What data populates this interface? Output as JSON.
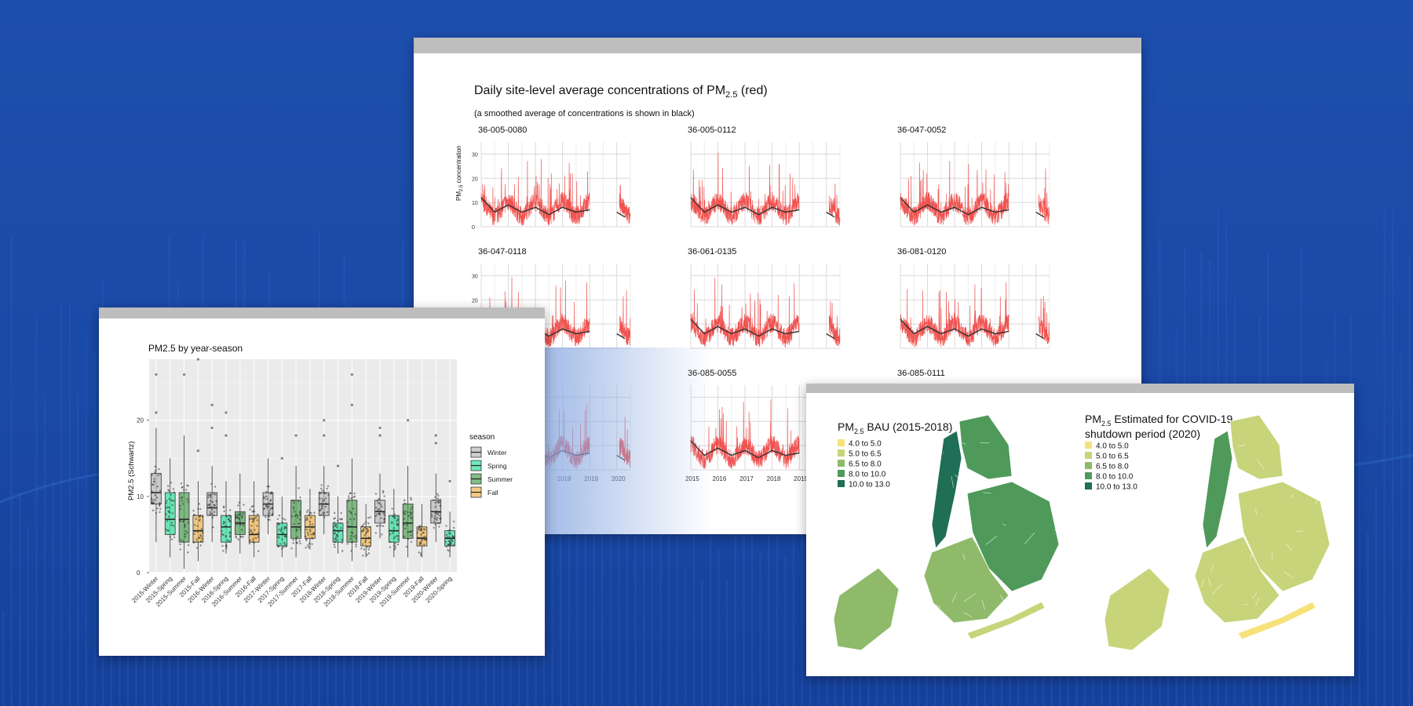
{
  "colors": {
    "background": "#1d4fae",
    "card": "#ffffff",
    "card_bar": "#bdbdbd",
    "daily_series": "#ef5350",
    "smoothed_series": "#333333",
    "winter": "#bdbdbd",
    "spring": "#3fe0a3",
    "summer": "#5aa55f",
    "fall": "#f0b95c",
    "map_scale": [
      "#f7e27a",
      "#c8d47a",
      "#8fba6a",
      "#4f9a5a",
      "#1f6e55"
    ]
  },
  "timeseries_panel": {
    "title_prefix": "Daily site-level average concentrations of PM",
    "title_sub": "2.5",
    "title_suffix": " (red)",
    "subtitle": "(a smoothed average of concentrations is shown in black)",
    "ylabel_prefix": "PM",
    "ylabel_sub": "2.5",
    "ylabel_suffix": " concentration"
  },
  "map_panel": {
    "left_title_prefix": "PM",
    "left_title_sub": "2.5",
    "left_title_suffix": " BAU (2015-2018)",
    "right_title_prefix": "PM",
    "right_title_sub": "2.5",
    "right_title_suffix": " Estimated for COVID-19",
    "right_title_line2": "shutdown period (2020)",
    "legend": [
      "4.0 to 5.0",
      "5.0 to 6.5",
      "6.5 to 8.0",
      "8.0 to 10.0",
      "10.0 to 13.0"
    ]
  },
  "chart_data": [
    {
      "type": "line",
      "title": "Daily site-level average concentrations of PM2.5 (red)",
      "subtitle": "(a smoothed average of concentrations is shown in black)",
      "ylabel": "PM2.5 concentration",
      "ylim": [
        0,
        35
      ],
      "yticks": [
        0,
        10,
        20,
        30
      ],
      "xticks": [
        "2015",
        "2016",
        "2017",
        "2018",
        "2019",
        "2020"
      ],
      "facets": [
        {
          "site": "36-005-0080"
        },
        {
          "site": "36-005-0112"
        },
        {
          "site": "36-047-0052"
        },
        {
          "site": "36-047-0118"
        },
        {
          "site": "36-061-0135"
        },
        {
          "site": "36-081-0120"
        },
        {
          "site": ""
        },
        {
          "site": "36-085-0055"
        },
        {
          "site": "36-085-0111"
        }
      ],
      "series": [
        {
          "name": "daily average",
          "color": "#ef5350"
        },
        {
          "name": "smoothed average",
          "color": "#333333"
        }
      ],
      "smoothed_approx_by_year": {
        "x": [
          2015,
          2015.5,
          2016,
          2016.5,
          2017,
          2017.5,
          2018,
          2018.5,
          2019,
          2020,
          2020.3
        ],
        "y": [
          12,
          6,
          9,
          6,
          8,
          5,
          8,
          6,
          7,
          6,
          4
        ]
      }
    },
    {
      "type": "box",
      "title": "PM2.5 by year-season",
      "xlabel": "",
      "ylabel": "PM2.5 (Schwartz)",
      "ylim": [
        0,
        28
      ],
      "yticks": [
        0,
        10,
        20
      ],
      "legend_title": "season",
      "legend": [
        "Winter",
        "Spring",
        "Summer",
        "Fall"
      ],
      "legend_position": "right",
      "categories": [
        "2015-Winter",
        "2015-Spring",
        "2015-Summer",
        "2015-Fall",
        "2016-Winter",
        "2016-Spring",
        "2016-Summer",
        "2016-Fall",
        "2017-Winter",
        "2017-Spring",
        "2017-Summer",
        "2017-Fall",
        "2018-Winter",
        "2018-Spring",
        "2018-Summer",
        "2018-Fall",
        "2019-Winter",
        "2019-Spring",
        "2019-Summer",
        "2019-Fall",
        "2020-Winter",
        "2020-Spring"
      ],
      "boxes": [
        {
          "season": "Winter",
          "whislo": 4,
          "q1": 9,
          "med": 10.5,
          "q3": 13,
          "whishi": 19,
          "outliers": [
            21,
            26
          ]
        },
        {
          "season": "Spring",
          "whislo": 2,
          "q1": 5,
          "med": 7,
          "q3": 10.5,
          "whishi": 15,
          "outliers": []
        },
        {
          "season": "Summer",
          "whislo": 0.5,
          "q1": 4,
          "med": 7,
          "q3": 10.5,
          "whishi": 18,
          "outliers": [
            26
          ]
        },
        {
          "season": "Fall",
          "whislo": 1.5,
          "q1": 4,
          "med": 5.5,
          "q3": 7.5,
          "whishi": 12,
          "outliers": [
            16,
            28
          ]
        },
        {
          "season": "Winter",
          "whislo": 4,
          "q1": 7.5,
          "med": 8.5,
          "q3": 10.5,
          "whishi": 14,
          "outliers": [
            19,
            22
          ]
        },
        {
          "season": "Spring",
          "whislo": 2.5,
          "q1": 4,
          "med": 6,
          "q3": 7.5,
          "whishi": 12,
          "outliers": [
            18,
            21
          ]
        },
        {
          "season": "Summer",
          "whislo": 2.5,
          "q1": 5,
          "med": 6.5,
          "q3": 8,
          "whishi": 13,
          "outliers": []
        },
        {
          "season": "Fall",
          "whislo": 2,
          "q1": 4,
          "med": 5,
          "q3": 7.5,
          "whishi": 12,
          "outliers": []
        },
        {
          "season": "Winter",
          "whislo": 5,
          "q1": 7.5,
          "med": 9,
          "q3": 10.5,
          "whishi": 15,
          "outliers": []
        },
        {
          "season": "Spring",
          "whislo": 2,
          "q1": 3.5,
          "med": 5,
          "q3": 6.5,
          "whishi": 10,
          "outliers": [
            15
          ]
        },
        {
          "season": "Summer",
          "whislo": 2,
          "q1": 4.5,
          "med": 6,
          "q3": 9.5,
          "whishi": 14,
          "outliers": [
            18
          ]
        },
        {
          "season": "Fall",
          "whislo": 3,
          "q1": 4.5,
          "med": 6,
          "q3": 7.5,
          "whishi": 11,
          "outliers": []
        },
        {
          "season": "Winter",
          "whislo": 5,
          "q1": 7.5,
          "med": 9,
          "q3": 10.5,
          "whishi": 14,
          "outliers": [
            18,
            20
          ]
        },
        {
          "season": "Spring",
          "whislo": 2.5,
          "q1": 4,
          "med": 5.5,
          "q3": 6.5,
          "whishi": 10,
          "outliers": [
            14
          ]
        },
        {
          "season": "Summer",
          "whislo": 1.5,
          "q1": 4,
          "med": 6,
          "q3": 9.5,
          "whishi": 15,
          "outliers": [
            22,
            26
          ]
        },
        {
          "season": "Fall",
          "whislo": 2,
          "q1": 3.5,
          "med": 4.5,
          "q3": 6,
          "whishi": 9,
          "outliers": []
        },
        {
          "season": "Winter",
          "whislo": 4.5,
          "q1": 6.5,
          "med": 8,
          "q3": 9.5,
          "whishi": 13,
          "outliers": [
            18,
            19
          ]
        },
        {
          "season": "Spring",
          "whislo": 2,
          "q1": 4,
          "med": 5.5,
          "q3": 7.5,
          "whishi": 11,
          "outliers": []
        },
        {
          "season": "Summer",
          "whislo": 2,
          "q1": 4.5,
          "med": 6.5,
          "q3": 9,
          "whishi": 14,
          "outliers": [
            20
          ]
        },
        {
          "season": "Fall",
          "whislo": 2,
          "q1": 3.5,
          "med": 4.5,
          "q3": 6,
          "whishi": 9,
          "outliers": []
        },
        {
          "season": "Winter",
          "whislo": 4,
          "q1": 6.5,
          "med": 8,
          "q3": 9.5,
          "whishi": 13,
          "outliers": [
            17,
            18
          ]
        },
        {
          "season": "Spring",
          "whislo": 2,
          "q1": 3.5,
          "med": 4.5,
          "q3": 5.5,
          "whishi": 8,
          "outliers": [
            12
          ]
        }
      ]
    }
  ]
}
